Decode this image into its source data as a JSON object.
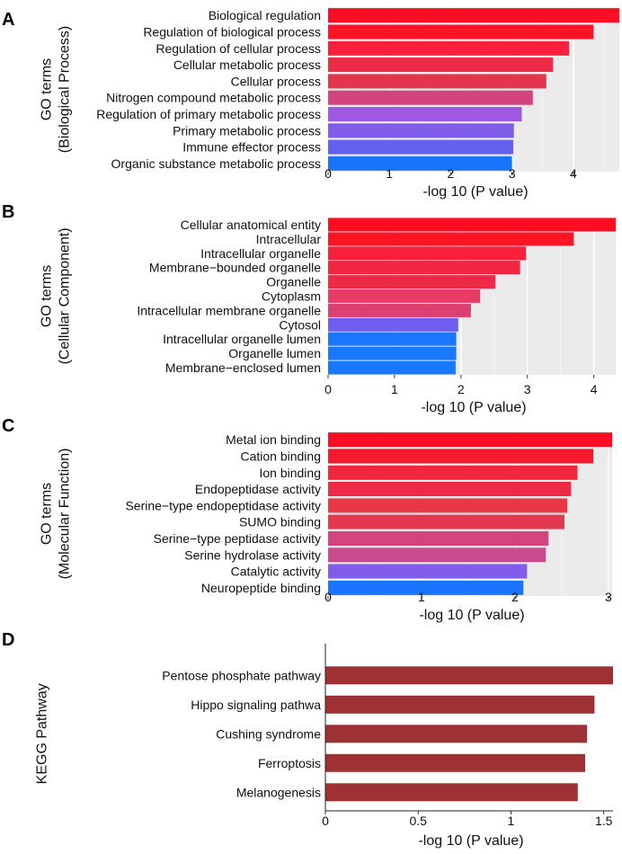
{
  "chart_data": [
    {
      "type": "bar",
      "orientation": "horizontal",
      "panel": "A",
      "ylabel_lines": [
        "GO terms",
        "(Biological Process)"
      ],
      "xlabel": "-log 10 (P value)",
      "xlim": [
        0,
        4.75
      ],
      "xticks": [
        "0",
        "1",
        "2",
        "3",
        "4"
      ],
      "categories": [
        "Biological regulation",
        "Regulation of biological process",
        "Regulation of cellular process",
        "Cellular metabolic process",
        "Cellular process ",
        "Nitrogen compound metabolic process",
        "Regulation of primary metabolic process",
        "Primary metabolic process ",
        "Immune effector process",
        "Organic substance metabolic process"
      ],
      "values": [
        4.75,
        4.33,
        3.93,
        3.67,
        3.56,
        3.34,
        3.16,
        3.03,
        3.02,
        3.0
      ],
      "bar_colors": [
        "#fe0d23",
        "#fe1423",
        "#f9203b",
        "#ee2b46",
        "#e5344e",
        "#d3447f",
        "#9e58e2",
        "#7f5de8",
        "#6262ef",
        "#1a75fe"
      ],
      "background": "#ebebeb",
      "grid": true
    },
    {
      "type": "bar",
      "orientation": "horizontal",
      "panel": "B",
      "ylabel_lines": [
        "GO terms",
        "(Cellular Component)"
      ],
      "xlabel": "-log 10 (P value)",
      "xlim": [
        0,
        4.33
      ],
      "xticks": [
        "0",
        "1",
        "2",
        "3",
        "4"
      ],
      "categories": [
        "Cellular anatomical entity",
        "Intracellular ",
        "Intracellular organelle",
        "Membrane−bounded organelle",
        "Organelle",
        "Cytoplasm",
        "Intracellular membrane organelle",
        "Cytosol",
        "Intracellular organelle lumen",
        "Organelle lumen",
        "Membrane−enclosed lumen"
      ],
      "values": [
        4.33,
        3.7,
        2.98,
        2.89,
        2.52,
        2.29,
        2.15,
        1.96,
        1.93,
        1.93,
        1.92
      ],
      "bar_colors": [
        "#fe0d23",
        "#fe1423",
        "#f9203b",
        "#f2263e",
        "#ee2b46",
        "#e83c64",
        "#dc3f72",
        "#6f5ff0",
        "#1a78fe",
        "#1a78fe",
        "#1a78fe"
      ],
      "background": "#ebebeb",
      "grid": true
    },
    {
      "type": "bar",
      "orientation": "horizontal",
      "panel": "C",
      "ylabel_lines": [
        "GO terms",
        "(Molecular Function)"
      ],
      "xlabel": "-log 10 (P value)",
      "xlim": [
        0,
        3.04
      ],
      "xticks": [
        "0",
        "1",
        "2",
        "3"
      ],
      "categories": [
        "Metal ion binding",
        "Cation binding ",
        "Ion binding",
        "Endopeptidase activity",
        "Serine−type endopeptidase activity",
        "SUMO binding",
        "Serine−type peptidase activity",
        "Serine hydrolase activity",
        "Catalytic activity",
        "Neuropeptide binding"
      ],
      "values": [
        3.04,
        2.84,
        2.67,
        2.6,
        2.56,
        2.53,
        2.36,
        2.33,
        2.13,
        2.09
      ],
      "bar_colors": [
        "#fe0d23",
        "#f71a2e",
        "#f2263e",
        "#ee2b46",
        "#e83848",
        "#e3384f",
        "#d3437d",
        "#c94a8e",
        "#7f5de8",
        "#1a75fe"
      ],
      "background": "#ebebeb",
      "grid": true
    },
    {
      "type": "bar",
      "orientation": "horizontal",
      "panel": "D",
      "ylabel_lines": [
        "KEGG Pathway"
      ],
      "xlabel": "-log 10 (P value)",
      "xlim": [
        0,
        1.55
      ],
      "xticks": [
        "0",
        "0.5",
        "1",
        "1.5"
      ],
      "categories": [
        "Pentose phosphate pathway",
        "Hippo signaling pathwa",
        "Cushing syndrome",
        "Ferroptosis",
        "Melanogenesis"
      ],
      "values": [
        1.55,
        1.45,
        1.41,
        1.4,
        1.36
      ],
      "bar_colors": [
        "#9e3133",
        "#9e3133",
        "#9e3133",
        "#9e3133",
        "#9e3133"
      ],
      "background": "#ffffff",
      "grid": false
    }
  ]
}
